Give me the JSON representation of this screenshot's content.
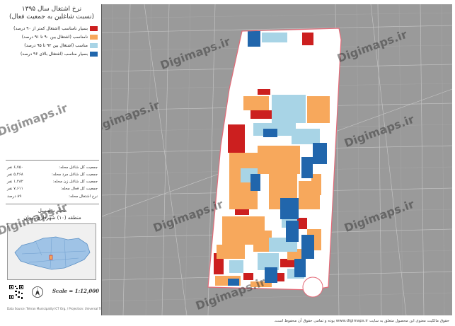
{
  "title": {
    "line1": "نرخ اشتغال سال ۱۳۹۵",
    "line2": "(نسبت شاغلین به جمعیت فعال)"
  },
  "legend": [
    {
      "label": "بسیار نامناسب (اشتغال کمتر از ۹۰ درصد)",
      "color": "#cc1f1f"
    },
    {
      "label": "نامناسب (اشتغال بین ۹۰ تا ۹۱ درصد)",
      "color": "#f7a85c"
    },
    {
      "label": "مناسب (اشتغال بین ۹۲ تا ۹۵ درصد)",
      "color": "#a8d4e6"
    },
    {
      "label": "بسیار مناسب (اشتغال بالای ۹۶ درصد)",
      "color": "#2166ac"
    }
  ],
  "stats": [
    {
      "label": "جمعیت کل شاغل محله:",
      "value": "۶,۷۵۰ نفر"
    },
    {
      "label": "جمعیت کل شاغل مرد محله:",
      "value": "۵,۴۶۸ نفر"
    },
    {
      "label": "جمعیت کل شاغل زن محله:",
      "value": "۱,۲۸۲ نفر"
    },
    {
      "label": "جمعیت کل فعال محله:",
      "value": "۷,۶۱۱ نفر"
    },
    {
      "label": "نرخ اشتغال محله:",
      "value": "۸۹ درصد"
    }
  ],
  "area": {
    "neighborhood": "محله سلسبیل",
    "district": "منطقه (۱۰) شهرداری تهران"
  },
  "scale": "Scale = 1:12,000",
  "north_label": "N",
  "footer_small": "Data Source: Tehran Municipality ICT Org. / Projection: Universal Transverse Mercator",
  "watermark": "Digimaps.ir",
  "copyright": "حقوق مالکیت معنوی این محصول متعلق به سایت www.digimaps.ir بوده و تمامی حقوق آن محفوظ است.",
  "colors": {
    "very_poor": "#cc1f1f",
    "poor": "#f7a85c",
    "good": "#a8d4e6",
    "very_good": "#2166ac",
    "base_map": "#9a9a9a",
    "outline": "#e46a78"
  }
}
